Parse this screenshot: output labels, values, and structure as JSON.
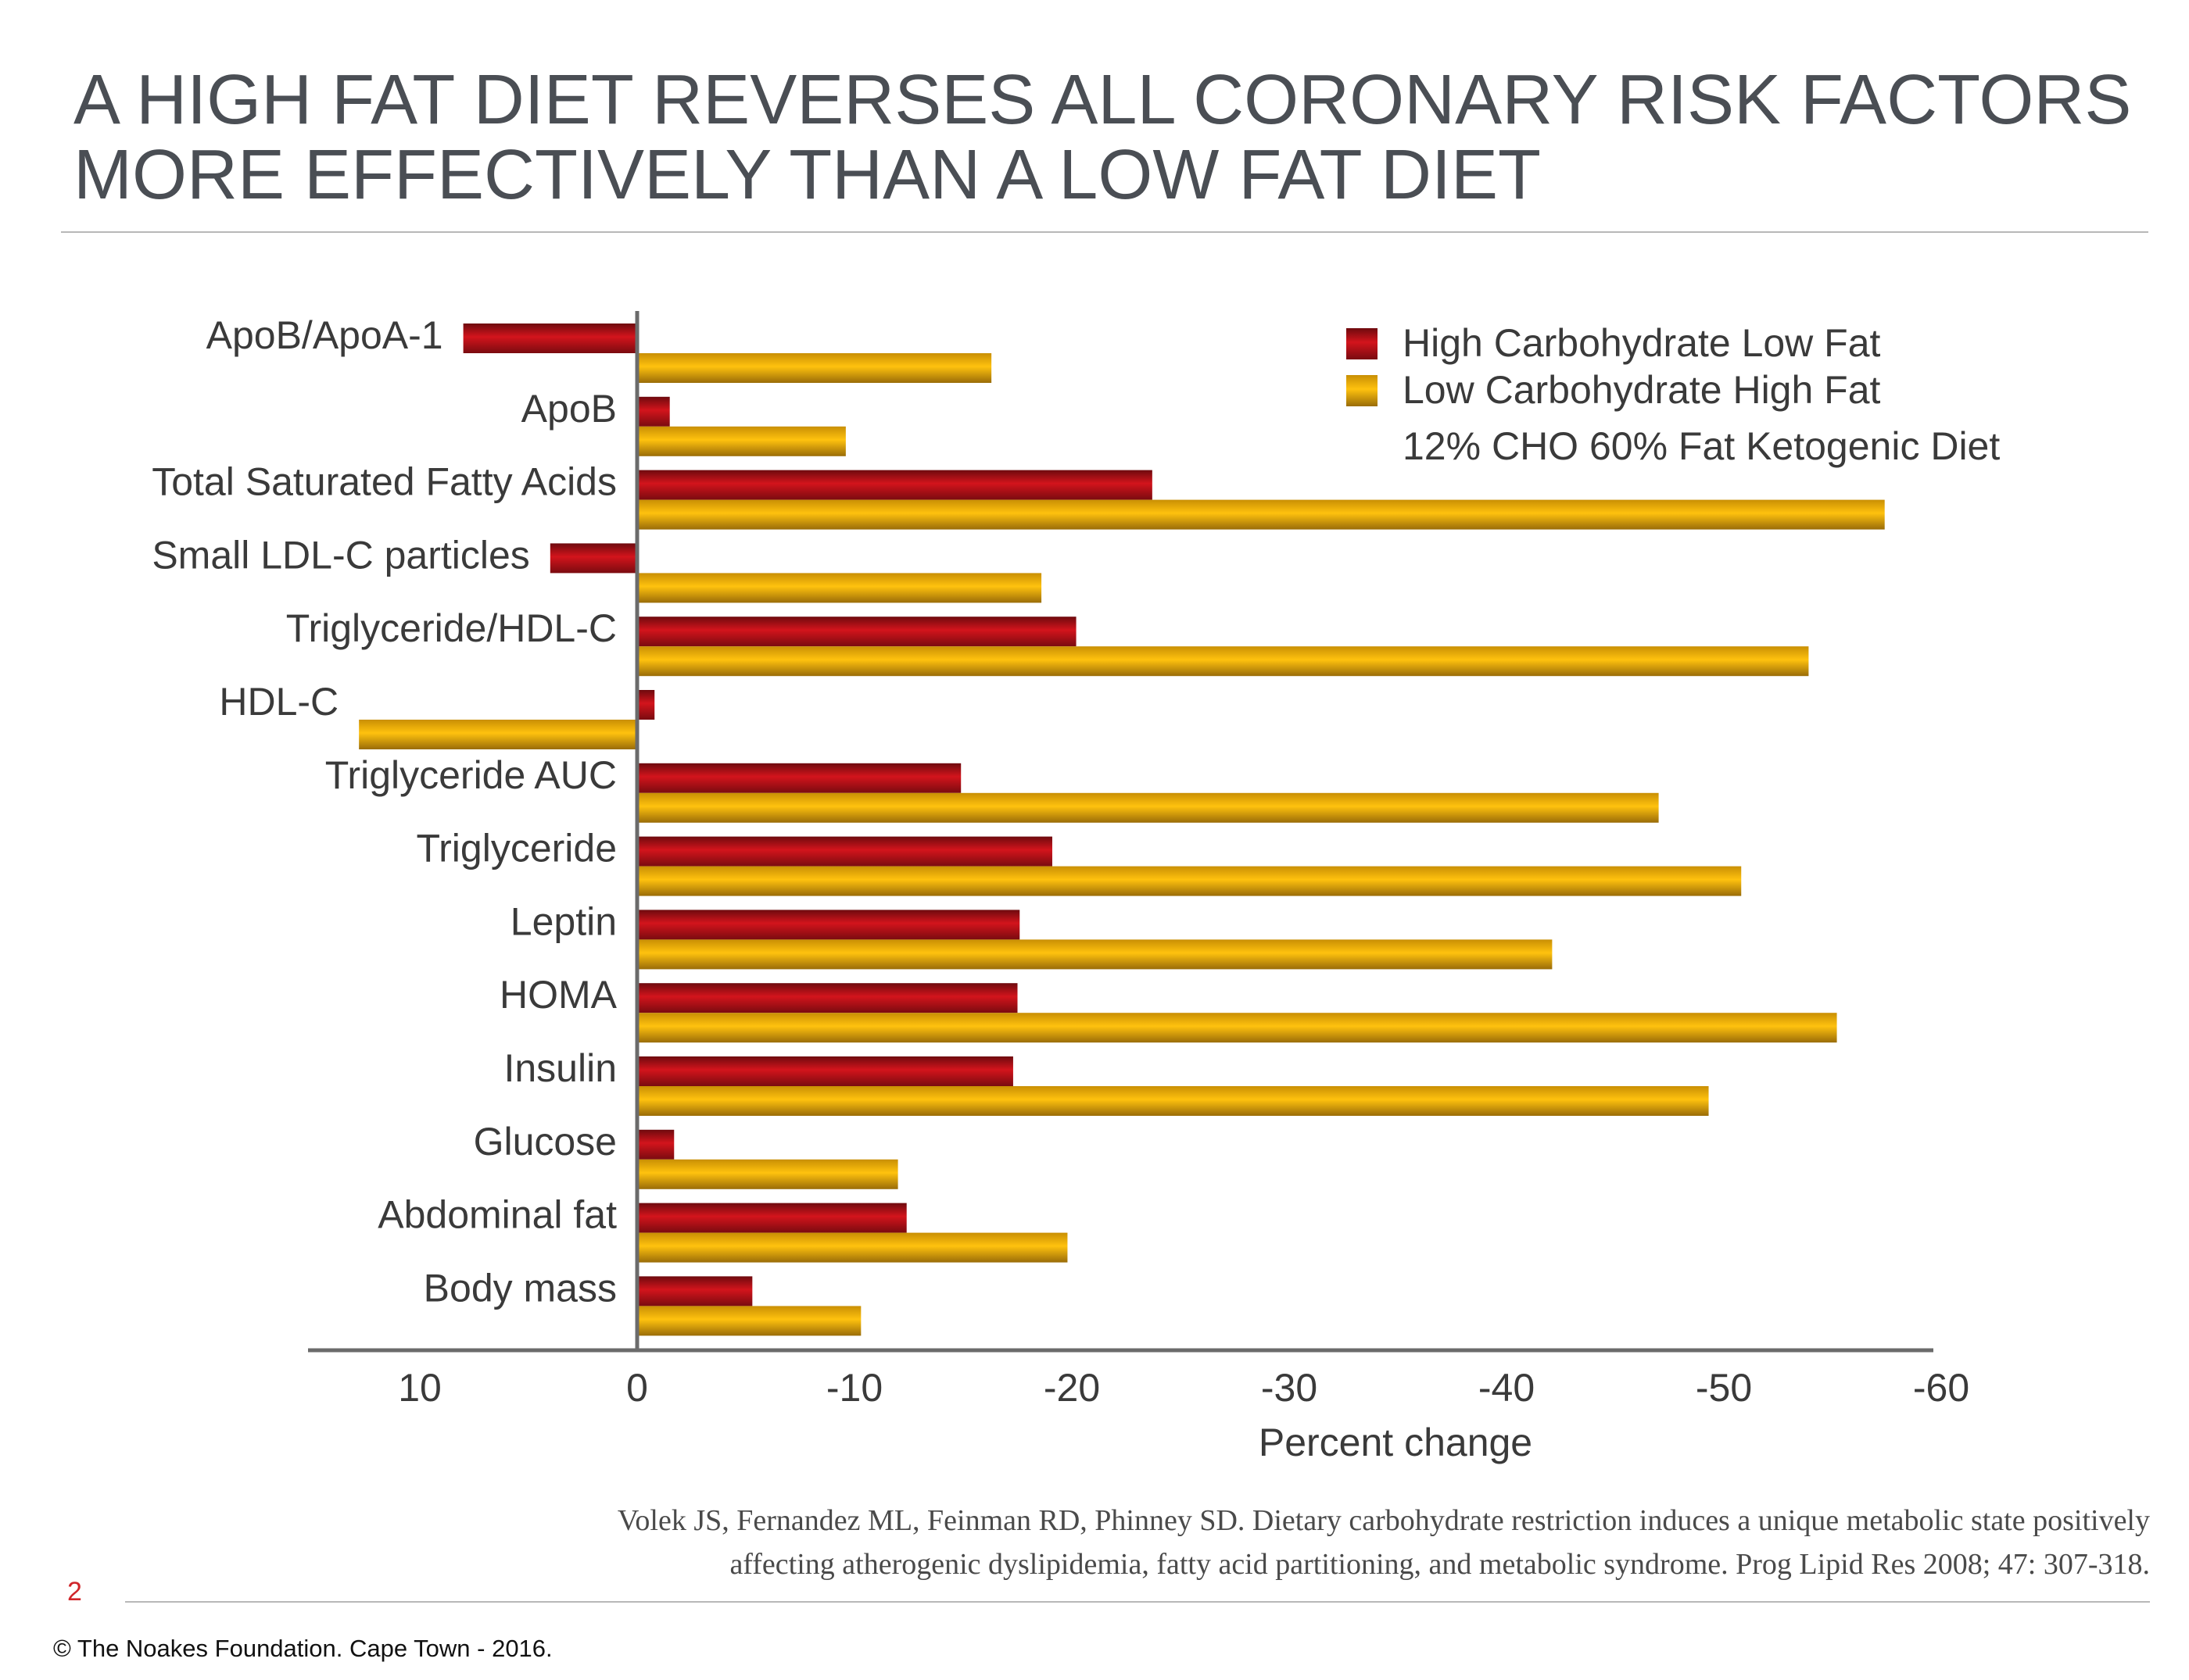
{
  "slide": {
    "title": "A HIGH FAT DIET REVERSES ALL CORONARY RISK FACTORS MORE EFFECTIVELY THAN A LOW FAT DIET",
    "citation_line1": "Volek JS, Fernandez ML, Feinman RD, Phinney SD. Dietary carbohydrate restriction induces a unique metabolic state positively",
    "citation_line2": "affecting atherogenic dyslipidemia, fatty acid partitioning, and metabolic syndrome. Prog Lipid Res 2008; 47: 307-318.",
    "page_number": "2",
    "copyright": "© The Noakes Foundation. Cape Town - 2016."
  },
  "chart_data": {
    "type": "bar",
    "orientation": "horizontal",
    "categories": [
      "ApoB/ApoA-1",
      "ApoB",
      "Total Saturated Fatty Acids",
      "Small LDL-C particles",
      "Triglyceride/HDL-C",
      "HDL-C",
      "Triglyceride AUC",
      "Triglyceride",
      "Leptin",
      "HOMA",
      "Insulin",
      "Glucose",
      "Abdominal fat",
      "Body mass"
    ],
    "series": [
      {
        "name": "High Carbohydrate Low Fat",
        "color": "#b5121b",
        "values": [
          8,
          -1.5,
          -23.7,
          4,
          -20.2,
          -0.8,
          -14.9,
          -19.1,
          -17.6,
          -17.5,
          -17.3,
          -1.7,
          -12.4,
          -5.3
        ]
      },
      {
        "name": "Low Carbohydrate High Fat",
        "color": "#f2b705",
        "values": [
          -16.3,
          -9.6,
          -57.4,
          -18.6,
          -53.9,
          12.8,
          -47,
          -50.8,
          -42.1,
          -55.2,
          -49.3,
          -12,
          -19.8,
          -10.3
        ]
      }
    ],
    "legend_note": "12% CHO 60% Fat Ketogenic Diet",
    "xlabel": "Percent change",
    "xlim": [
      15,
      -60
    ],
    "xticks": [
      "10",
      "0",
      "-10",
      "-20",
      "-30",
      "-40",
      "-50",
      "-60"
    ],
    "xtick_values": [
      10,
      0,
      -10,
      -20,
      -30,
      -40,
      -50,
      -60
    ],
    "legend_position": "top-right",
    "grid": false
  }
}
